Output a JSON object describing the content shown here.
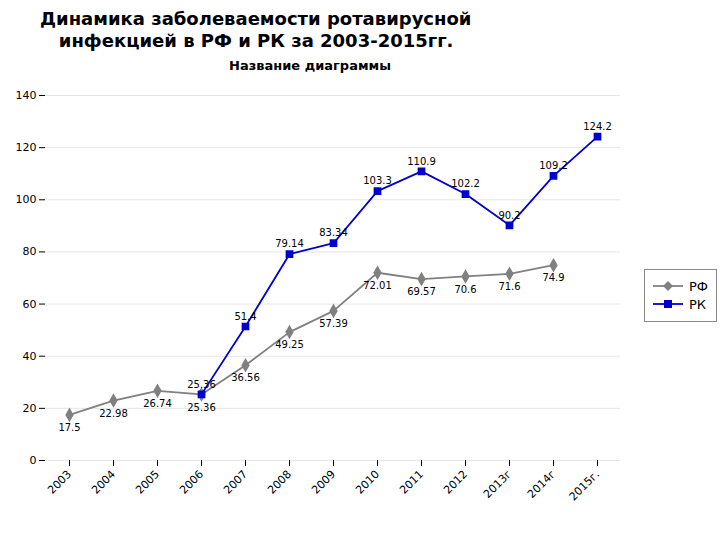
{
  "chart_data": {
    "type": "line",
    "title": "Динамика заболеваемости ротавирусной\n   инфекцией в РФ и РК за 2003-2015гг.",
    "subtitle": "Название диаграммы",
    "categories": [
      "2003",
      "2004",
      "2005",
      "2006",
      "2007",
      "2008",
      "2009",
      "2010",
      "2011",
      "2012",
      "2013г",
      "2014г",
      "2015г."
    ],
    "series": [
      {
        "name": "РФ",
        "color": "#808080",
        "marker": "diamond",
        "values": [
          17.5,
          22.98,
          26.74,
          25.36,
          36.56,
          49.25,
          57.39,
          72.01,
          69.57,
          70.6,
          71.6,
          74.9,
          null
        ]
      },
      {
        "name": "РК",
        "color": "#0000cd",
        "marker": "square",
        "values": [
          null,
          null,
          null,
          25.36,
          51.4,
          79.14,
          83.34,
          103.3,
          110.9,
          102.2,
          90.2,
          109.2,
          124.2
        ]
      }
    ],
    "ylim": [
      0,
      140
    ],
    "yticks": [
      0,
      20,
      40,
      60,
      80,
      100,
      120,
      140
    ],
    "grid": true,
    "legend": "right",
    "data_labels": true
  }
}
